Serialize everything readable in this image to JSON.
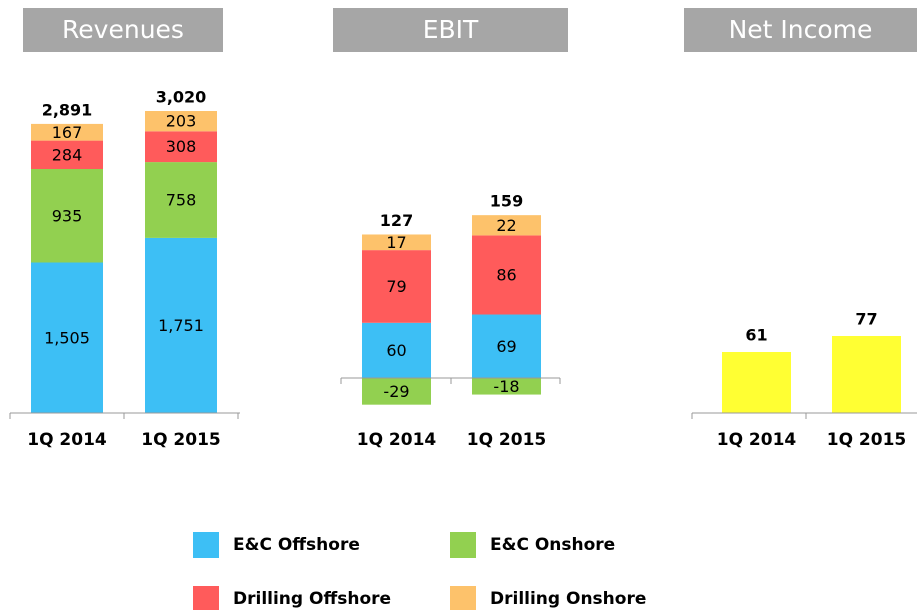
{
  "chart_data": [
    {
      "type": "bar",
      "stacked": true,
      "title": "Revenues",
      "categories": [
        "1Q 2014",
        "1Q 2015"
      ],
      "series": [
        {
          "name": "E&C Offshore",
          "color": "#3dbff5",
          "values": [
            1505,
            1751
          ],
          "value_labels": [
            "1,505",
            "1,751"
          ]
        },
        {
          "name": "E&C Onshore",
          "color": "#92d050",
          "values": [
            935,
            758
          ]
        },
        {
          "name": "Drilling Offshore",
          "color": "#ff5b5b",
          "values": [
            284,
            308
          ]
        },
        {
          "name": "Drilling Onshore",
          "color": "#fdc26b",
          "values": [
            167,
            203
          ]
        }
      ],
      "totals": [
        2891,
        3020
      ],
      "total_labels": [
        "2,891",
        "3,020"
      ]
    },
    {
      "type": "bar",
      "stacked": true,
      "title": "EBIT",
      "categories": [
        "1Q 2014",
        "1Q 2015"
      ],
      "series": [
        {
          "name": "E&C Offshore",
          "color": "#3dbff5",
          "values": [
            60,
            69
          ]
        },
        {
          "name": "E&C Onshore",
          "color": "#92d050",
          "values": [
            -29,
            -18
          ]
        },
        {
          "name": "Drilling Offshore",
          "color": "#ff5b5b",
          "values": [
            79,
            86
          ]
        },
        {
          "name": "Drilling Onshore",
          "color": "#fdc26b",
          "values": [
            17,
            22
          ]
        }
      ],
      "totals": [
        127,
        159
      ]
    },
    {
      "type": "bar",
      "stacked": false,
      "title": "Net Income",
      "categories": [
        "1Q 2014",
        "1Q 2015"
      ],
      "color": "#ffff33",
      "values": [
        61,
        77
      ]
    }
  ]
}
